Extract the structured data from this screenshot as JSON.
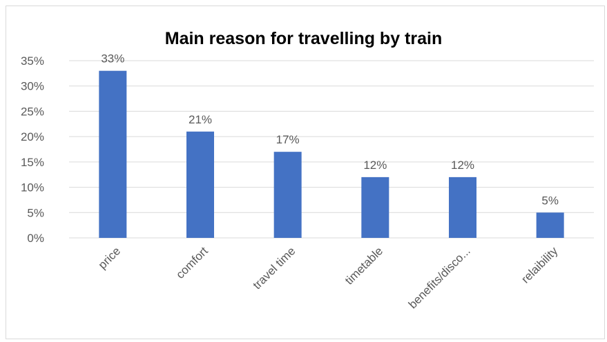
{
  "chart_data": {
    "type": "bar",
    "title": "Main reason for travelling by train",
    "xlabel": "",
    "ylabel": "",
    "categories": [
      "price",
      "comfort",
      "travel time",
      "timetable",
      "benefits/disco...",
      "relaibility"
    ],
    "values": [
      33,
      21,
      17,
      12,
      12,
      5
    ],
    "data_labels": [
      "33%",
      "21%",
      "17%",
      "12%",
      "12%",
      "5%"
    ],
    "ylim": [
      0,
      35
    ],
    "yticks": [
      0,
      5,
      10,
      15,
      20,
      25,
      30,
      35
    ],
    "ytick_labels": [
      "0%",
      "5%",
      "10%",
      "15%",
      "20%",
      "25%",
      "30%",
      "35%"
    ],
    "grid": true,
    "legend": "none",
    "colors": {
      "bar": "#4472c4",
      "grid": "#d9d9d9",
      "text": "#595959",
      "title": "#000000"
    }
  }
}
